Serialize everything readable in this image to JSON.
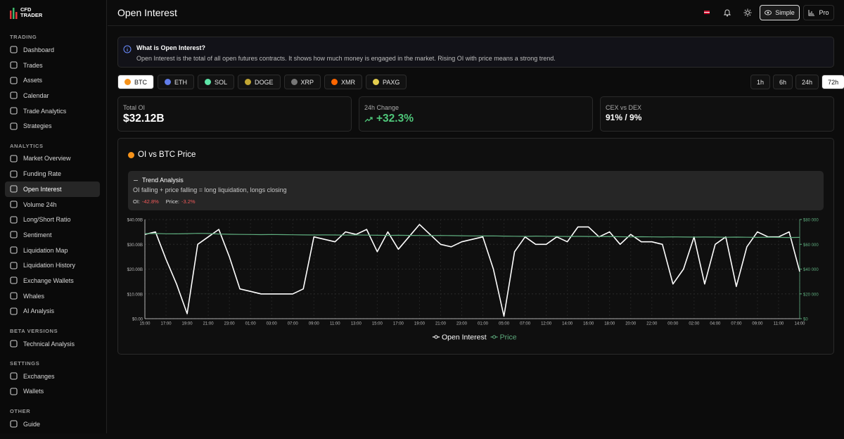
{
  "logo": {
    "line1": "CFD",
    "line2": "TRADER"
  },
  "sidebar": [
    {
      "heading": "TRADING",
      "items": [
        "Dashboard",
        "Trades",
        "Assets",
        "Calendar",
        "Trade Analytics",
        "Strategies"
      ]
    },
    {
      "heading": "ANALYTICS",
      "items": [
        "Market Overview",
        "Funding Rate",
        "Open Interest",
        "Volume 24h",
        "Long/Short Ratio",
        "Sentiment",
        "Liquidation Map",
        "Liquidation History",
        "Exchange Wallets",
        "Whales",
        "AI Analysis"
      ]
    },
    {
      "heading": "BETA VERSIONS",
      "items": [
        "Technical Analysis"
      ]
    },
    {
      "heading": "SETTINGS",
      "items": [
        "Exchanges",
        "Wallets"
      ]
    },
    {
      "heading": "OTHER",
      "items": [
        "Guide"
      ]
    }
  ],
  "active_item": "Open Interest",
  "header": {
    "title": "Open Interest",
    "buttons": [
      "Simple",
      "Pro"
    ]
  },
  "info": {
    "title": "What is Open Interest?",
    "text": "Open Interest is the total of all open futures contracts. It shows how much money is engaged in the market. Rising OI with price means a strong trend."
  },
  "coins": [
    "BTC",
    "ETH",
    "SOL",
    "DOGE",
    "XRP",
    "XMR",
    "PAXG"
  ],
  "timeframes": [
    "1h",
    "6h",
    "24h",
    "72h"
  ],
  "stats": [
    {
      "label": "Total OI",
      "value": "$32.12B"
    },
    {
      "label": "24h Change",
      "value": "+32.3%"
    },
    {
      "label": "CEX vs DEX",
      "value": "91% / 9%"
    }
  ],
  "trend": {
    "title": "Trend Analysis",
    "text": "OI falling + price falling = long liquidation, longs closing",
    "oi_label": "OI:",
    "oi_value": "-42.8%",
    "price_label": "Price:",
    "price_value": "-3.2%"
  },
  "chart_data": {
    "type": "line",
    "title": "OI vs BTC Price",
    "categories": [
      "15:00",
      null,
      "17:00",
      null,
      "19:00",
      null,
      "21:00",
      null,
      "23:00",
      null,
      "01:00",
      null,
      "03:00",
      null,
      "07:00",
      null,
      "09:00",
      null,
      "11:00",
      null,
      "13:00",
      null,
      "15:00",
      null,
      "17:00",
      null,
      "19:00",
      null,
      "21:00",
      null,
      "23:00",
      null,
      "01:00",
      null,
      "05:00",
      null,
      "07:00",
      null,
      "12:00",
      null,
      "14:00",
      null,
      "16:00",
      null,
      "18:00",
      null,
      "20:00",
      null,
      "22:00",
      null,
      "00:00",
      null,
      "02:00",
      null,
      "04:00",
      null,
      "07:00",
      null,
      "09:00",
      null,
      "11:00",
      null,
      "14:00"
    ],
    "series": [
      {
        "name": "Open Interest",
        "color": "#ffffff",
        "values": [
          34,
          35,
          24,
          14,
          2,
          30,
          33,
          36,
          25,
          12,
          11,
          10,
          10,
          10,
          10,
          12,
          33,
          32,
          31,
          35,
          34,
          36,
          27,
          35,
          28,
          33,
          38,
          34,
          30,
          29,
          31,
          32,
          33,
          20,
          1,
          27,
          33,
          30,
          30,
          33,
          31,
          37,
          37,
          33,
          35,
          30,
          34,
          31,
          31,
          30,
          14,
          20,
          33,
          14,
          30,
          33,
          13,
          29,
          35,
          33,
          33,
          35,
          19
        ]
      },
      {
        "name": "Price",
        "color": "#5fae7f",
        "axis": "y2",
        "values": [
          68600,
          68700,
          68500,
          68400,
          68600,
          68800,
          68700,
          68300,
          68100,
          68000,
          67900,
          67800,
          67900,
          67800,
          67700,
          67600,
          67500,
          67600,
          67500,
          67400,
          67500,
          67400,
          67300,
          67200,
          67300,
          67200,
          67100,
          67000,
          67100,
          67000,
          66900,
          66800,
          66700,
          66800,
          66600,
          66500,
          66400,
          66600,
          66500,
          66400,
          66300,
          66400,
          66300,
          66200,
          66300,
          66100,
          66000,
          66100,
          66000,
          65900,
          66000,
          65900,
          65800,
          65900,
          65800,
          65700,
          65800,
          65700,
          65600,
          65700,
          65600,
          65500,
          65600
        ]
      }
    ],
    "ylim": [
      0,
      40
    ],
    "yticks": [
      {
        "value": 0,
        "label": "$0.00"
      },
      {
        "value": 10,
        "label": "$10.00B"
      },
      {
        "value": 20,
        "label": "$20.00B"
      },
      {
        "value": 30,
        "label": "$30.00B"
      },
      {
        "value": 40,
        "label": "$40.00B"
      }
    ],
    "y2lim": [
      0,
      80000
    ],
    "y2ticks": [
      {
        "value": 0,
        "label": "$0"
      },
      {
        "value": 20000,
        "label": "$20 000"
      },
      {
        "value": 40000,
        "label": "$40 000"
      },
      {
        "value": 60000,
        "label": "$60 000"
      },
      {
        "value": 80000,
        "label": "$80 000"
      }
    ],
    "grid": true
  }
}
